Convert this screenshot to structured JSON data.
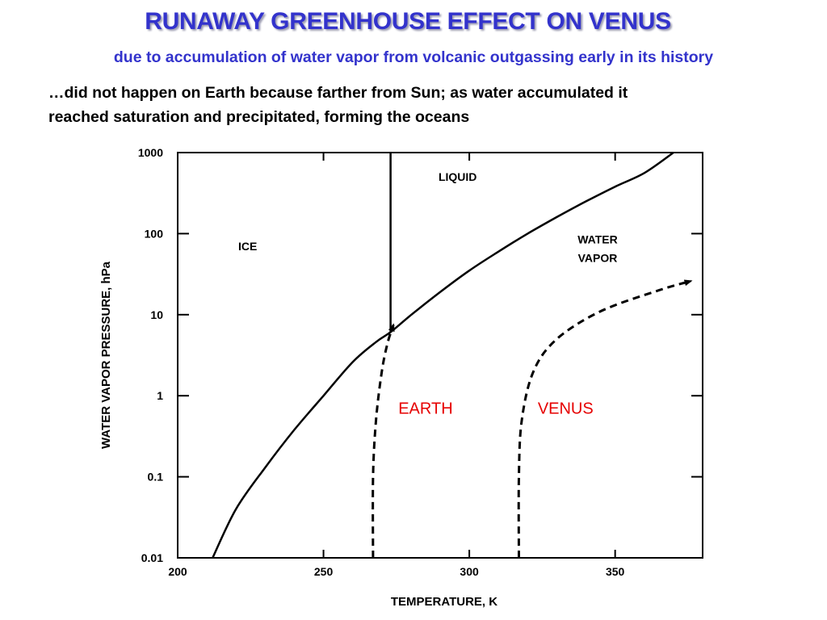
{
  "slide": {
    "title": "RUNAWAY GREENHOUSE EFFECT ON VENUS",
    "subtitle": "due to accumulation of water vapor from volcanic outgassing early in its history",
    "body_line1": "…did not happen on Earth because farther from Sun; as water accumulated it",
    "body_line2": "reached saturation and precipitated, forming the oceans"
  },
  "chart_data": {
    "type": "line",
    "title": "",
    "xlabel": "TEMPERATURE, K",
    "ylabel": "WATER VAPOR PRESSURE, hPa",
    "xlim": [
      200,
      380
    ],
    "ylim": [
      0.01,
      1000
    ],
    "yscale": "log",
    "grid": false,
    "x_ticks": [
      200,
      250,
      300,
      350
    ],
    "x_tick_labels": [
      "200",
      "250",
      "300",
      "350"
    ],
    "y_ticks": [
      0.01,
      0.1,
      1,
      10,
      100,
      1000
    ],
    "y_tick_labels": [
      "0.01",
      "0.1",
      "1",
      "10",
      "100",
      "1000"
    ],
    "region_labels": [
      {
        "text": "ICE",
        "x": 224,
        "y": 70
      },
      {
        "text": "LIQUID",
        "x": 296,
        "y": 500
      },
      {
        "text": "WATER",
        "x": 344,
        "y": 85
      },
      {
        "text": "VAPOR",
        "x": 344,
        "y": 50
      }
    ],
    "series": [
      {
        "name": "",
        "style": "solid",
        "x": [
          212,
          220,
          230,
          240,
          250,
          260,
          268,
          273,
          280,
          290,
          300,
          310,
          320,
          330,
          340,
          350,
          360,
          370
        ],
        "y": [
          0.01,
          0.04,
          0.13,
          0.38,
          1.0,
          2.6,
          4.6,
          6.1,
          9.9,
          19,
          35,
          60,
          100,
          160,
          250,
          380,
          560,
          1000
        ]
      },
      {
        "name": "",
        "style": "solid",
        "x": [
          273,
          273
        ],
        "y": [
          6.1,
          1000
        ]
      },
      {
        "name": "EARTH",
        "style": "dashed-arrow",
        "color": "#000000",
        "x": [
          267,
          267,
          268,
          270,
          272,
          274
        ],
        "y": [
          0.01,
          0.1,
          0.5,
          2,
          4.5,
          7.5
        ]
      },
      {
        "name": "VENUS",
        "style": "dashed-arrow",
        "color": "#000000",
        "x": [
          317,
          317,
          318,
          322,
          330,
          345,
          365,
          376
        ],
        "y": [
          0.01,
          0.1,
          0.5,
          2,
          5,
          11,
          20,
          26
        ]
      }
    ],
    "series_labels": [
      {
        "text": "EARTH",
        "x": 285,
        "y": 0.6,
        "color": "#e60000"
      },
      {
        "text": "VENUS",
        "x": 333,
        "y": 0.6,
        "color": "#e60000"
      }
    ]
  }
}
